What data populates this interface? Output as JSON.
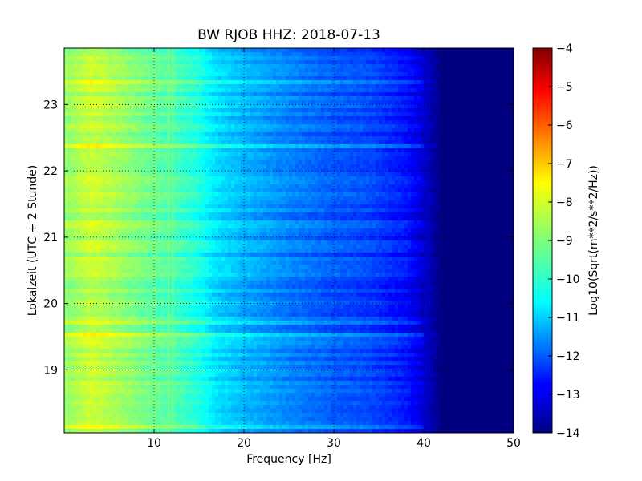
{
  "chart_data": {
    "type": "heatmap",
    "title": "BW RJOB HHZ: 2018-07-13",
    "xlabel": "Frequency [Hz]",
    "ylabel": "Lokalzeit (UTC + 2 Stunde)",
    "xlim": [
      0,
      50
    ],
    "ylim": [
      23.85,
      18.05
    ],
    "x_ticks": [
      10,
      20,
      30,
      40,
      50
    ],
    "y_ticks": [
      19,
      20,
      21,
      22,
      23
    ],
    "grid": true,
    "colorbar": {
      "label": "Log10(Sqrt(m**2/s**2/Hz))",
      "range": [
        -14,
        -4
      ],
      "ticks": [
        -4,
        -5,
        -6,
        -7,
        -8,
        -9,
        -10,
        -11,
        -12,
        -13,
        -14
      ],
      "colormap": "jet"
    },
    "spectrum_profile": [
      {
        "freq": 0.5,
        "value": -8.8
      },
      {
        "freq": 3,
        "value": -8.3
      },
      {
        "freq": 6,
        "value": -8.7
      },
      {
        "freq": 10,
        "value": -9.3
      },
      {
        "freq": 12,
        "value": -9.5
      },
      {
        "freq": 15,
        "value": -10.0
      },
      {
        "freq": 17,
        "value": -10.6
      },
      {
        "freq": 20,
        "value": -11.0
      },
      {
        "freq": 25,
        "value": -11.5
      },
      {
        "freq": 30,
        "value": -11.9
      },
      {
        "freq": 34,
        "value": -12.1
      },
      {
        "freq": 38,
        "value": -12.6
      },
      {
        "freq": 40,
        "value": -13.2
      },
      {
        "freq": 42,
        "value": -14.0
      },
      {
        "freq": 50,
        "value": -14.0
      }
    ],
    "line_features_hz": [
      10.0,
      11.6,
      12.1
    ],
    "periodic_feature": {
      "freq": 34.5,
      "value": -11.2
    }
  },
  "colors": {
    "frame": "#000000",
    "background": "#ffffff",
    "grid": "#000000"
  }
}
